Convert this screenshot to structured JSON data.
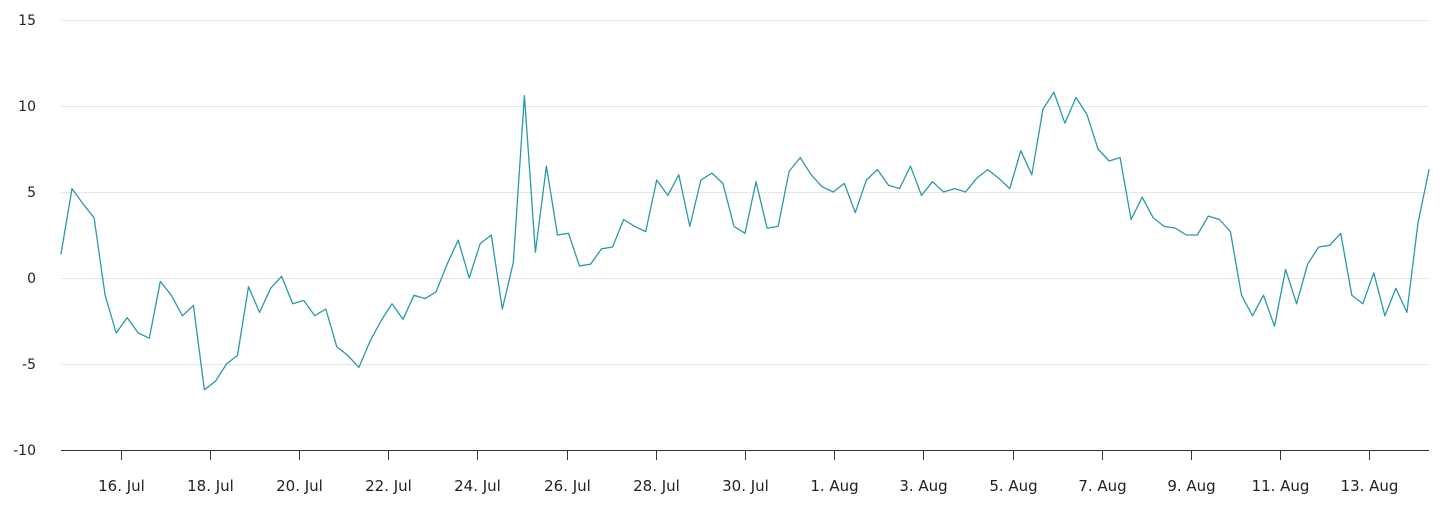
{
  "chart_data": {
    "type": "line",
    "title": "",
    "xlabel": "",
    "ylabel": "",
    "ylim": [
      -10,
      15
    ],
    "y_ticks": [
      "15",
      "10",
      "5",
      "0",
      "-5",
      "-10"
    ],
    "x_ticks": [
      "16. Jul",
      "18. Jul",
      "20. Jul",
      "22. Jul",
      "24. Jul",
      "26. Jul",
      "28. Jul",
      "30. Jul",
      "1. Aug",
      "3. Aug",
      "5. Aug",
      "7. Aug",
      "9. Aug",
      "11. Aug",
      "13. Aug"
    ],
    "x_start": "15. Jul",
    "x_end": "14. Aug",
    "grid": true,
    "legend": "none",
    "series_color": "#2a9aa8",
    "x": [
      "15. Jul 00h",
      "15. Jul 06h",
      "15. Jul 12h",
      "15. Jul 18h",
      "16. Jul 00h",
      "16. Jul 06h",
      "16. Jul 12h",
      "16. Jul 18h",
      "17. Jul 00h",
      "17. Jul 06h",
      "17. Jul 12h",
      "17. Jul 18h",
      "18. Jul 00h",
      "18. Jul 06h",
      "18. Jul 12h",
      "18. Jul 18h",
      "19. Jul 00h",
      "19. Jul 06h",
      "19. Jul 12h",
      "19. Jul 18h",
      "20. Jul 00h",
      "20. Jul 06h",
      "20. Jul 12h",
      "20. Jul 18h",
      "21. Jul 00h",
      "21. Jul 06h",
      "21. Jul 12h",
      "21. Jul 18h",
      "22. Jul 00h",
      "22. Jul 06h",
      "22. Jul 12h",
      "22. Jul 18h",
      "23. Jul 00h",
      "23. Jul 06h",
      "23. Jul 12h",
      "23. Jul 18h",
      "24. Jul 00h",
      "24. Jul 06h",
      "24. Jul 12h",
      "24. Jul 18h",
      "25. Jul 00h",
      "25. Jul 06h",
      "25. Jul 12h",
      "25. Jul 18h",
      "26. Jul 00h",
      "26. Jul 06h",
      "26. Jul 12h",
      "26. Jul 18h",
      "27. Jul 00h",
      "27. Jul 06h",
      "27. Jul 12h",
      "27. Jul 18h",
      "28. Jul 00h",
      "28. Jul 06h",
      "28. Jul 12h",
      "28. Jul 18h",
      "29. Jul 00h",
      "29. Jul 06h",
      "29. Jul 12h",
      "29. Jul 18h",
      "30. Jul 00h",
      "30. Jul 06h",
      "30. Jul 12h",
      "30. Jul 18h",
      "31. Jul 00h",
      "31. Jul 06h",
      "31. Jul 12h",
      "31. Jul 18h",
      "1. Aug 00h",
      "1. Aug 06h",
      "1. Aug 12h",
      "1. Aug 18h",
      "2. Aug 00h",
      "2. Aug 06h",
      "2. Aug 12h",
      "2. Aug 18h",
      "3. Aug 00h",
      "3. Aug 06h",
      "3. Aug 12h",
      "3. Aug 18h",
      "4. Aug 00h",
      "4. Aug 06h",
      "4. Aug 12h",
      "4. Aug 18h",
      "5. Aug 00h",
      "5. Aug 06h",
      "5. Aug 12h",
      "5. Aug 18h",
      "6. Aug 00h",
      "6. Aug 06h",
      "6. Aug 12h",
      "6. Aug 18h",
      "7. Aug 00h",
      "7. Aug 06h",
      "7. Aug 12h",
      "7. Aug 18h",
      "8. Aug 00h",
      "8. Aug 06h",
      "8. Aug 12h",
      "8. Aug 18h",
      "9. Aug 00h",
      "9. Aug 06h",
      "9. Aug 12h",
      "9. Aug 18h",
      "10. Aug 00h",
      "10. Aug 06h",
      "10. Aug 12h",
      "10. Aug 18h",
      "11. Aug 00h",
      "11. Aug 06h",
      "11. Aug 12h",
      "11. Aug 18h",
      "12. Aug 00h",
      "12. Aug 06h",
      "12. Aug 12h",
      "12. Aug 18h",
      "13. Aug 00h",
      "13. Aug 06h",
      "13. Aug 12h",
      "13. Aug 18h",
      "14. Aug 00h",
      "14. Aug 06h",
      "14. Aug 12h",
      "14. Aug 18h",
      "15. Aug 00h"
    ],
    "series": [
      {
        "values": [
          1.4,
          5.2,
          4.3,
          3.5,
          -1.0,
          -3.2,
          -2.3,
          -3.2,
          -3.5,
          -0.2,
          -1.0,
          -2.2,
          -1.6,
          -6.5,
          -6.0,
          -5.0,
          -4.5,
          -0.5,
          -2.0,
          -0.6,
          0.1,
          -1.5,
          -1.3,
          -2.2,
          -1.8,
          -4.0,
          -4.5,
          -5.2,
          -3.7,
          -2.5,
          -1.5,
          -2.4,
          -1.0,
          -1.2,
          -0.8,
          0.8,
          2.2,
          0.0,
          2.0,
          2.5,
          -1.8,
          0.9,
          10.6,
          1.5,
          6.5,
          2.5,
          2.6,
          0.7,
          0.8,
          1.7,
          1.8,
          3.4,
          3.0,
          2.7,
          5.7,
          4.8,
          6.0,
          3.0,
          5.7,
          6.1,
          5.5,
          3.0,
          2.6,
          5.6,
          2.9,
          3.0,
          6.2,
          7.0,
          6.0,
          5.3,
          5.0,
          5.5,
          3.8,
          5.7,
          6.3,
          5.4,
          5.2,
          6.5,
          4.8,
          5.6,
          5.0,
          5.2,
          5.0,
          5.8,
          6.3,
          5.8,
          5.2,
          7.4,
          6.0,
          9.8,
          10.8,
          9.0,
          10.5,
          9.5,
          7.5,
          6.8,
          7.0,
          3.4,
          4.7,
          3.5,
          3.0,
          2.9,
          2.5,
          2.5,
          3.6,
          3.4,
          2.7,
          -1.0,
          -2.2,
          -1.0,
          -2.8,
          0.5,
          -1.5,
          0.8,
          1.8,
          1.9,
          2.6,
          -1.0,
          -1.5,
          0.3,
          -2.2,
          -0.6,
          -2.0,
          3.2,
          6.3
        ]
      }
    ]
  }
}
